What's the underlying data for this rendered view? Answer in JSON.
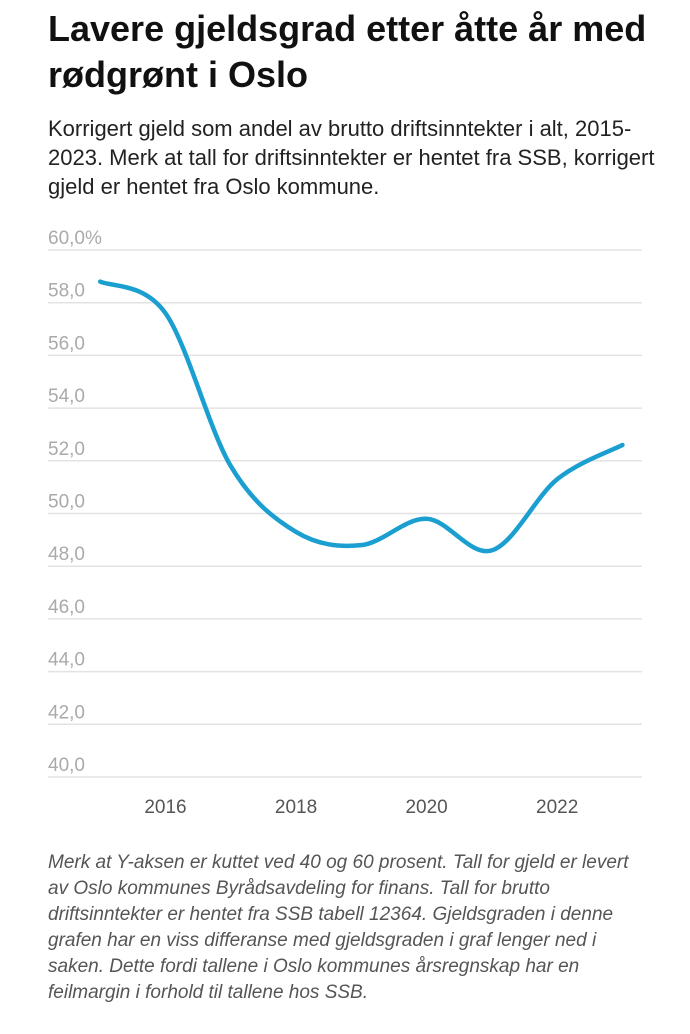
{
  "header": {
    "title": "Lavere gjeldsgrad etter åtte år med rødgrønt i Oslo",
    "subtitle": "Korrigert gjeld som andel av brutto driftsinntekter i alt, 2015-2023. Merk at tall for driftsinntekter er hentet fra SSB, korrigert gjeld er hentet fra Oslo kommune."
  },
  "footnote": "Merk at Y-aksen er kuttet ved 40 og 60 prosent. Tall for gjeld er levert av Oslo kommunes Byrådsavdeling for finans. Tall for brutto driftsinntekter er hentet fra SSB tabell 12364. Gjeldsgraden i denne grafen har en viss differanse med gjeldsgraden i graf lenger ned i saken. Dette fordi tallene i Oslo kommunes årsregnskap har en feilmargin i forhold til tallene hos SSB.",
  "colors": {
    "line": "#1a9fd0",
    "grid": "#e3e3e3",
    "tick_label": "#aaaaaa",
    "x_tick_label": "#555555"
  },
  "chart_data": {
    "type": "line",
    "x": [
      2015,
      2016,
      2017,
      2018,
      2019,
      2020,
      2021,
      2022,
      2023
    ],
    "series": [
      {
        "values": [
          58.8,
          57.6,
          51.8,
          49.3,
          48.8,
          49.8,
          48.6,
          51.3,
          52.6
        ]
      }
    ],
    "xlim": [
      2014.2,
      2023.3
    ],
    "ylim": [
      40,
      60
    ],
    "yticks": [
      40,
      42,
      44,
      46,
      48,
      50,
      52,
      54,
      56,
      58,
      60
    ],
    "ytick_labels": [
      "40,0",
      "42,0",
      "44,0",
      "46,0",
      "48,0",
      "50,0",
      "52,0",
      "54,0",
      "56,0",
      "58,0",
      "60,0%"
    ],
    "xticks": [
      2016,
      2018,
      2020,
      2022
    ],
    "xtick_labels": [
      "2016",
      "2018",
      "2020",
      "2022"
    ],
    "grid": true,
    "line_color": "#1a9fd0"
  }
}
